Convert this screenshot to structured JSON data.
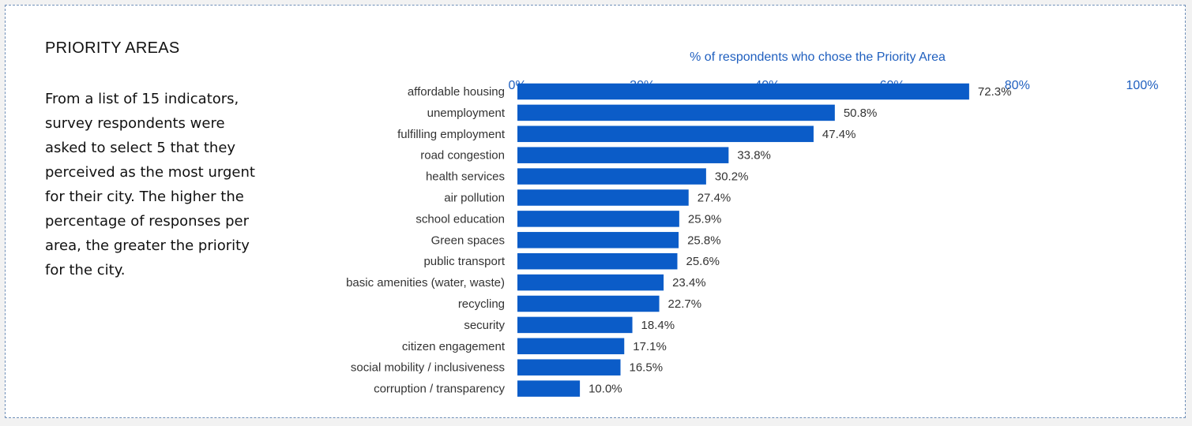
{
  "sidebar": {
    "title": "PRIORITY AREAS",
    "description": "From a list of 15 indicators, survey respondents were asked to select 5 that they perceived as the most urgent for their city. The higher the percentage of responses per area, the greater the priority for the city."
  },
  "colors": {
    "bar": "#0b5cc8",
    "axis_text": "#1f5fbf",
    "label_text": "#333333"
  },
  "chart_data": {
    "type": "bar",
    "orientation": "horizontal",
    "title": "% of respondents who chose the Priority Area",
    "xlim": [
      0,
      100
    ],
    "x_ticks": [
      "0%",
      "20%",
      "40%",
      "60%",
      "80%",
      "100%"
    ],
    "axis_position": "top",
    "grid": false,
    "categories": [
      "affordable housing",
      "unemployment",
      "fulfilling employment",
      "road congestion",
      "health services",
      "air pollution ",
      "school education",
      "Green spaces",
      "public transport",
      "basic amenities (water, waste)",
      "recycling",
      "security",
      "citizen engagement",
      "social mobility / inclusiveness",
      "corruption / transparency"
    ],
    "values": [
      72.3,
      50.8,
      47.4,
      33.8,
      30.2,
      27.4,
      25.9,
      25.8,
      25.6,
      23.4,
      22.7,
      18.4,
      17.1,
      16.5,
      10.0
    ],
    "value_labels": [
      "72.3%",
      "50.8%",
      "47.4%",
      "33.8%",
      "30.2%",
      "27.4%",
      "25.9%",
      "25.8%",
      "25.6%",
      "23.4%",
      "22.7%",
      "18.4%",
      "17.1%",
      "16.5%",
      "10.0%"
    ]
  }
}
